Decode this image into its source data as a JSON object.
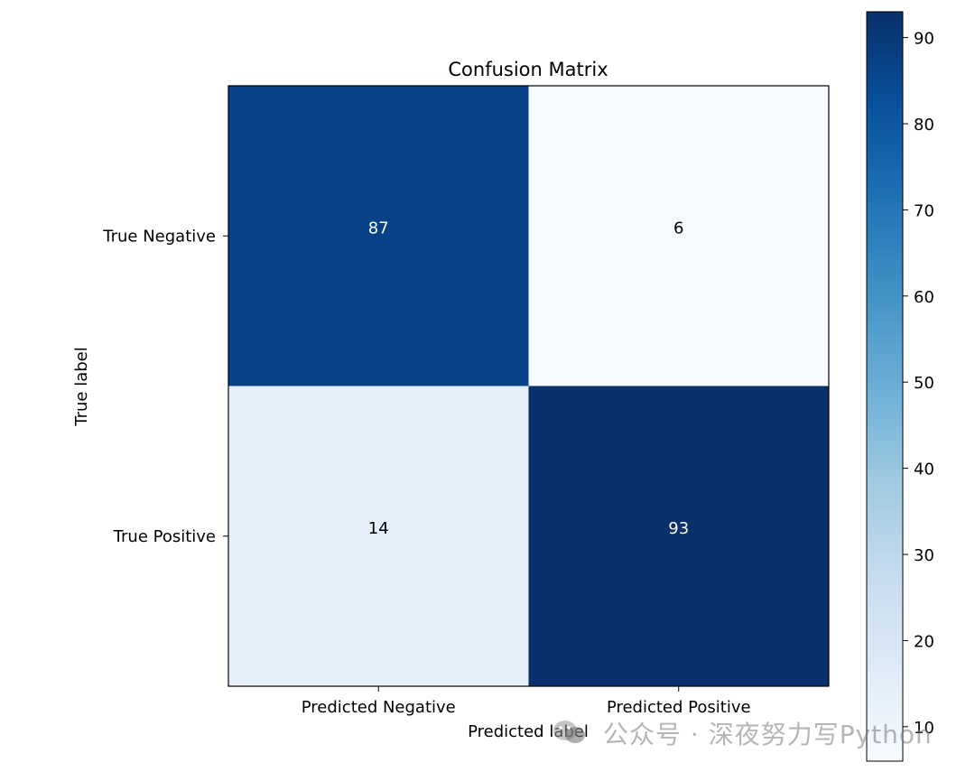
{
  "chart_data": {
    "type": "heatmap",
    "title": "Confusion Matrix",
    "xlabel": "Predicted label",
    "ylabel": "True label",
    "x_categories": [
      "Predicted Negative",
      "Predicted Positive"
    ],
    "y_categories": [
      "True Negative",
      "True Positive"
    ],
    "values": [
      [
        87,
        6
      ],
      [
        14,
        93
      ]
    ],
    "colormap": "Blues",
    "colorbar": {
      "range": [
        6,
        93
      ],
      "ticks": [
        10,
        20,
        30,
        40,
        50,
        60,
        70,
        80,
        90
      ],
      "tick_labels": [
        "10",
        "20",
        "30",
        "40",
        "50",
        "60",
        "70",
        "80",
        "90"
      ]
    }
  },
  "watermark": {
    "text": "公众号 · 深夜努力写Python",
    "icon": "wechat-icon"
  }
}
